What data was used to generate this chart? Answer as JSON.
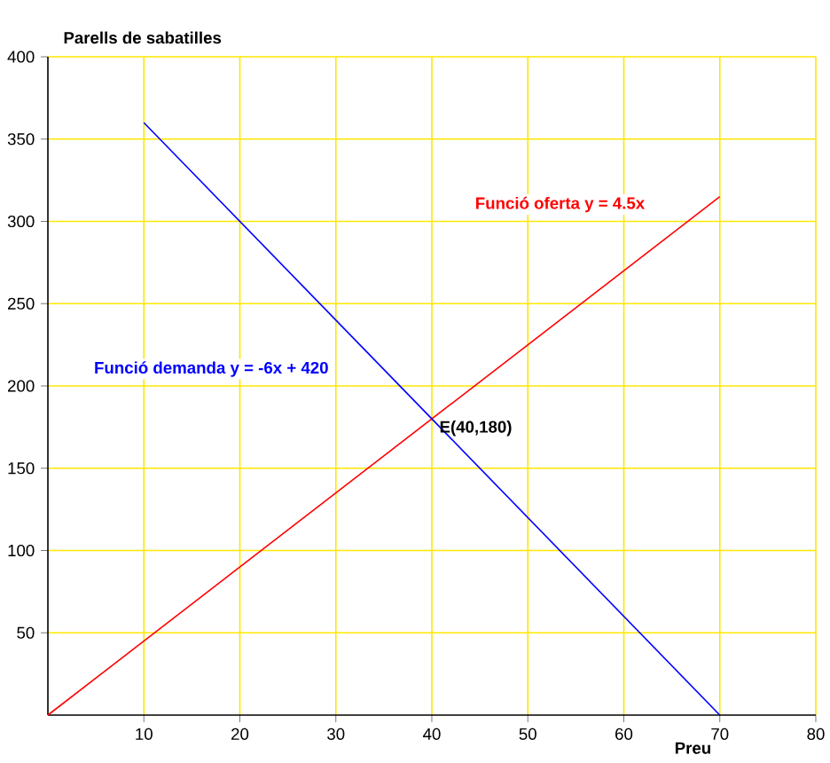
{
  "chart_data": {
    "type": "line",
    "xlabel": "Preu",
    "ylabel": "Parells de sabatilles",
    "series": [
      {
        "name": "Funció oferta y = 4.5x",
        "color": "#ff0000",
        "x": [
          0,
          70
        ],
        "values": [
          0,
          315
        ]
      },
      {
        "name": "Funció demanda  y = -6x + 420",
        "color": "#0000ff",
        "x": [
          10,
          70
        ],
        "values": [
          360,
          0
        ]
      }
    ],
    "annotations": [
      {
        "text": "E(40,180)",
        "x": 40,
        "y": 180
      }
    ],
    "xlim": [
      0,
      80
    ],
    "ylim": [
      0,
      400
    ],
    "xticks": [
      10,
      20,
      30,
      40,
      50,
      60,
      70,
      80
    ],
    "yticks": [
      50,
      100,
      150,
      200,
      250,
      300,
      350,
      400
    ],
    "grid": true,
    "marker": "none",
    "line_style": "solid"
  }
}
